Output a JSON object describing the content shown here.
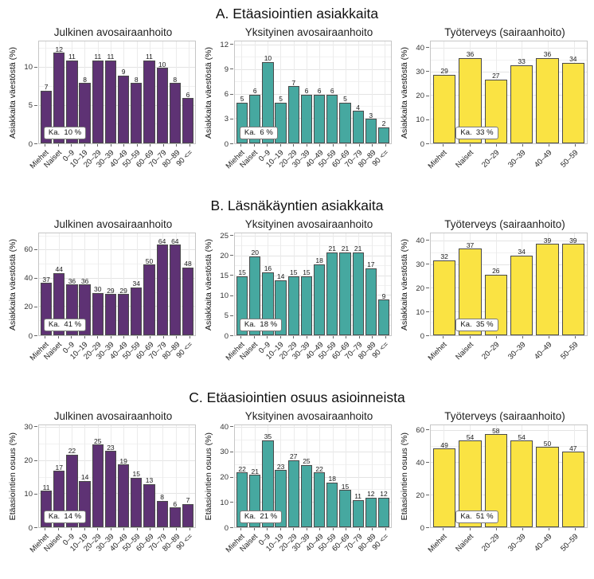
{
  "figure": {
    "background": "#ffffff"
  },
  "palette": {
    "julkinen_purple": "#5e3274",
    "yksityinen_teal": "#46a8a0",
    "tyoterveys_yellow": "#fae343",
    "bar_border": "#4a4a4a"
  },
  "sections": [
    {
      "title": "A. Etäasiointien asiakkaita",
      "charts": [
        0,
        1,
        2
      ]
    },
    {
      "title": "B. Läsnäkäyntien asiakkaita",
      "charts": [
        3,
        4,
        5
      ]
    },
    {
      "title": "C. Etäasiointien osuus asioinneista",
      "charts": [
        6,
        7,
        8
      ]
    }
  ],
  "chart_data": [
    {
      "type": "bar",
      "title": "Julkinen avosairaanhoito",
      "ylabel": "Asiakkaita väestöstä (%)",
      "color": "#5e3274",
      "annotation": "Ka.  10 %",
      "categories": [
        "Miehet",
        "Naiset",
        "0–9",
        "10–19",
        "20–29",
        "30–39",
        "40–49",
        "50–59",
        "60–69",
        "70–79",
        "80–89",
        "90 <="
      ],
      "values": [
        7,
        12,
        11,
        8,
        11,
        11,
        9,
        8,
        11,
        10,
        8,
        6
      ],
      "yticks": [
        0,
        5,
        10
      ],
      "ylim": [
        0,
        13.5
      ],
      "grid": true,
      "legend": "none"
    },
    {
      "type": "bar",
      "title": "Yksityinen avosairaanhoito",
      "ylabel": "Asiakkaita väestöstä (%)",
      "color": "#46a8a0",
      "annotation": "Ka.  6 %",
      "categories": [
        "Miehet",
        "Naiset",
        "0–9",
        "10–19",
        "20–29",
        "30–39",
        "40–49",
        "50–59",
        "60–69",
        "70–79",
        "80–89",
        "90 <="
      ],
      "values": [
        5,
        6,
        10,
        5,
        7,
        6,
        6,
        6,
        5,
        4,
        3,
        2
      ],
      "yticks": [
        0,
        3,
        6,
        9,
        12
      ],
      "ylim": [
        0,
        12.5
      ],
      "grid": true,
      "legend": "none"
    },
    {
      "type": "bar",
      "title": "Työterveys (sairaanhoito)",
      "ylabel": "Asiakkaita väestöstä (%)",
      "color": "#fae343",
      "annotation": "Ka.  33 %",
      "categories": [
        "Miehet",
        "Naiset",
        "20–29",
        "30–39",
        "40–49",
        "50–59"
      ],
      "values": [
        29,
        36,
        27,
        33,
        36,
        34
      ],
      "yticks": [
        0,
        10,
        20,
        30,
        40
      ],
      "ylim": [
        0,
        43
      ],
      "grid": true,
      "legend": "none"
    },
    {
      "type": "bar",
      "title": "Julkinen avosairaanhoito",
      "ylabel": "Asiakkaita väestöstä (%)",
      "color": "#5e3274",
      "annotation": "Ka.  41 %",
      "categories": [
        "Miehet",
        "Naiset",
        "0–9",
        "10–19",
        "20–29",
        "30–39",
        "40–49",
        "50–59",
        "60–69",
        "70–79",
        "80–89",
        "90 <="
      ],
      "values": [
        37,
        44,
        36,
        36,
        30,
        29,
        29,
        34,
        50,
        64,
        64,
        48
      ],
      "yticks": [
        0,
        20,
        40,
        60
      ],
      "ylim": [
        0,
        72
      ],
      "grid": true,
      "legend": "none"
    },
    {
      "type": "bar",
      "title": "Yksityinen avosairaanhoito",
      "ylabel": "Asiakkaita väestöstä (%)",
      "color": "#46a8a0",
      "annotation": "Ka.  18 %",
      "categories": [
        "Miehet",
        "Naiset",
        "0–9",
        "10–19",
        "20–29",
        "30–39",
        "40–49",
        "50–59",
        "60–69",
        "70–79",
        "80–89",
        "90 <="
      ],
      "values": [
        15,
        20,
        16,
        14,
        15,
        15,
        18,
        21,
        21,
        21,
        17,
        9
      ],
      "yticks": [
        0,
        5,
        10,
        15,
        20,
        25
      ],
      "ylim": [
        0,
        25.8
      ],
      "grid": true,
      "legend": "none"
    },
    {
      "type": "bar",
      "title": "Työterveys (sairaanhoito)",
      "ylabel": "Asiakkaita väestöstä (%)",
      "color": "#fae343",
      "annotation": "Ka.  35 %",
      "categories": [
        "Miehet",
        "Naiset",
        "20–29",
        "30–39",
        "40–49",
        "50–59"
      ],
      "values": [
        32,
        37,
        26,
        34,
        39,
        39
      ],
      "yticks": [
        0,
        10,
        20,
        30,
        40
      ],
      "ylim": [
        0,
        43.5
      ],
      "grid": true,
      "legend": "none"
    },
    {
      "type": "bar",
      "title": "Julkinen avosairaanhoito",
      "ylabel": "Etäasiointien osuus (%)",
      "color": "#5e3274",
      "annotation": "Ka.  14 %",
      "categories": [
        "Miehet",
        "Naiset",
        "0–9",
        "10–19",
        "20–29",
        "30–39",
        "40–49",
        "50–59",
        "60–69",
        "70–79",
        "80–89",
        "90 <="
      ],
      "values": [
        11,
        17,
        22,
        14,
        25,
        23,
        19,
        15,
        13,
        8,
        6,
        7
      ],
      "yticks": [
        0,
        10,
        20,
        30
      ],
      "ylim": [
        0,
        30.8
      ],
      "grid": true,
      "legend": "none"
    },
    {
      "type": "bar",
      "title": "Yksityinen avosairaanhoito",
      "ylabel": "Etäasiointien osuus (%)",
      "color": "#46a8a0",
      "annotation": "Ka.  21 %",
      "categories": [
        "Miehet",
        "Naiset",
        "0–9",
        "10–19",
        "20–29",
        "30–39",
        "40–49",
        "50–59",
        "60–69",
        "70–79",
        "80–89",
        "90 <="
      ],
      "values": [
        22,
        21,
        35,
        23,
        27,
        25,
        22,
        18,
        15,
        11,
        12,
        12
      ],
      "yticks": [
        0,
        10,
        20,
        30,
        40
      ],
      "ylim": [
        0,
        41
      ],
      "grid": true,
      "legend": "none"
    },
    {
      "type": "bar",
      "title": "Työterveys (sairaanhoito)",
      "ylabel": "Etäasiointien osuus (%)",
      "color": "#fae343",
      "annotation": "Ka.  51 %",
      "categories": [
        "Miehet",
        "Naiset",
        "20–29",
        "30–39",
        "40–49",
        "50–59"
      ],
      "values": [
        49,
        54,
        58,
        54,
        50,
        47
      ],
      "yticks": [
        0,
        20,
        40,
        60
      ],
      "ylim": [
        0,
        63.5
      ],
      "grid": true,
      "legend": "none"
    }
  ]
}
